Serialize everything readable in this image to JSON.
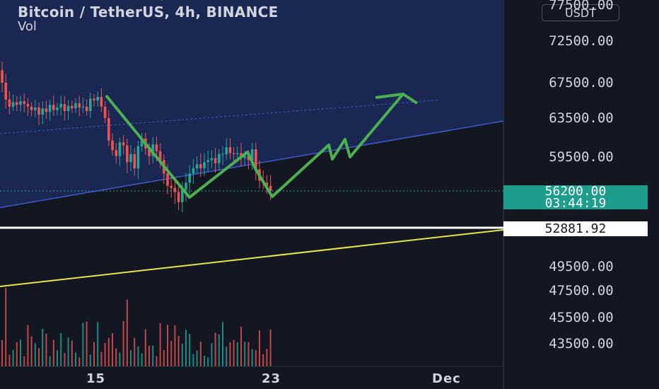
{
  "header": {
    "title": "Bitcoin / TetherUS, 4h, BINANCE",
    "volume_label": "Vol"
  },
  "currency_button": "USDT",
  "current_price": {
    "value": "56200.00",
    "countdown": "03:44:19"
  },
  "line_price_label": "52881.92",
  "colors": {
    "bg": "#131722",
    "up": "#26a69a",
    "down": "#ef5350",
    "channel": "#3d5ac8",
    "channel_fill": "#1c2a5a",
    "path": "#4caf50",
    "trend": "#e7e34a",
    "horizontal": "#ffffff",
    "price_tag": "#1e9c8c"
  },
  "chart_data": {
    "type": "candlestick",
    "title": "Bitcoin / TetherUS, 4h, BINANCE",
    "ylim": [
      41500,
      77500
    ],
    "y_ticks": [
      "77500.00",
      "72500.00",
      "67500.00",
      "63500.00",
      "59500.00",
      "56200.00",
      "52881.92",
      "49500.00",
      "47500.00",
      "45500.00",
      "43500.00"
    ],
    "x_ticks": [
      "15",
      "23",
      "Dec"
    ],
    "last_price": 56200,
    "horizontal_line": 52881.92,
    "candles_close_path": [
      67500,
      65600,
      64800,
      65300,
      65000,
      65400,
      65100,
      64800,
      64400,
      64700,
      63900,
      64600,
      64200,
      65000,
      64400,
      64700,
      65100,
      64300,
      64900,
      64600,
      65200,
      64700,
      64800,
      64300,
      65700,
      65500,
      65900,
      64800,
      63500,
      61200,
      60200,
      59600,
      61000,
      60700,
      59000,
      59800,
      58400,
      60600,
      61400,
      60400,
      59600,
      60800,
      60100,
      59200,
      57900,
      56700,
      56500,
      56100,
      55200,
      56300,
      57000,
      57900,
      58400,
      58800,
      58400,
      59000,
      59200,
      59400,
      58900,
      59800,
      59800,
      60500,
      59900,
      59800,
      59900,
      59400,
      59600,
      59200,
      60300,
      58300,
      57200,
      57000,
      56700,
      56200
    ],
    "channel": {
      "upper_start": 61900,
      "upper_end": 66100,
      "lower_start": 54700,
      "lower_end": 63200
    },
    "trendline": {
      "start": 49000,
      "end": 52900
    },
    "volume_note": "Vol"
  }
}
